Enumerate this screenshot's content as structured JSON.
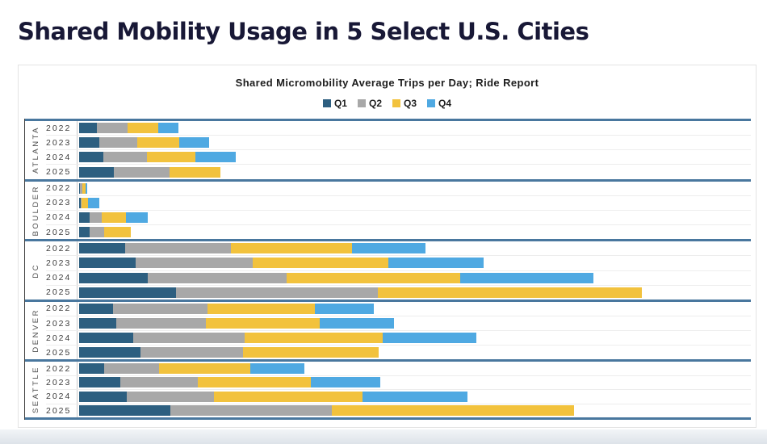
{
  "page": {
    "title": "Shared Mobility Usage in 5 Select U.S. Cities"
  },
  "chart": {
    "title": "Shared Micromobility Average Trips per Day; Ride Report"
  },
  "chart_data": {
    "type": "bar",
    "orientation": "horizontal",
    "stacked": true,
    "title": "Shared Micromobility Average Trips per Day; Ride Report",
    "legend_position": "top-center",
    "axis_note": "no numeric value axis is shown; values are approximate relative units read from bar lengths",
    "value_axis": {
      "min": 0,
      "max": 836,
      "ticks_visible": false
    },
    "quarters": [
      "q1",
      "q2",
      "q3",
      "q4"
    ],
    "colors": {
      "q1": "#2d5f80",
      "q2": "#a8a8a8",
      "q3": "#f2c23d",
      "q4": "#4fa9e2"
    },
    "legend": [
      {
        "key": "q1",
        "label": "Q1"
      },
      {
        "key": "q2",
        "label": "Q2"
      },
      {
        "key": "q3",
        "label": "Q3"
      },
      {
        "key": "q4",
        "label": "Q4"
      }
    ],
    "groups": [
      {
        "city": "ATLANTA",
        "rows": [
          {
            "year": "2022",
            "q1": 22,
            "q2": 38,
            "q3": 38,
            "q4": 25
          },
          {
            "year": "2023",
            "q1": 25,
            "q2": 47,
            "q3": 52,
            "q4": 37
          },
          {
            "year": "2024",
            "q1": 30,
            "q2": 54,
            "q3": 60,
            "q4": 50
          },
          {
            "year": "2025",
            "q1": 43,
            "q2": 69,
            "q3": 63,
            "q4": 0
          }
        ]
      },
      {
        "city": "BOULDER",
        "rows": [
          {
            "year": "2022",
            "q1": 1,
            "q2": 3,
            "q3": 4,
            "q4": 2
          },
          {
            "year": "2023",
            "q1": 2,
            "q2": 1,
            "q3": 8,
            "q4": 14
          },
          {
            "year": "2024",
            "q1": 13,
            "q2": 15,
            "q3": 30,
            "q4": 27
          },
          {
            "year": "2025",
            "q1": 13,
            "q2": 18,
            "q3": 33,
            "q4": 0
          }
        ]
      },
      {
        "city": "DC",
        "rows": [
          {
            "year": "2022",
            "q1": 57,
            "q2": 131,
            "q3": 150,
            "q4": 91
          },
          {
            "year": "2023",
            "q1": 70,
            "q2": 145,
            "q3": 168,
            "q4": 118
          },
          {
            "year": "2024",
            "q1": 85,
            "q2": 172,
            "q3": 215,
            "q4": 165
          },
          {
            "year": "2025",
            "q1": 120,
            "q2": 250,
            "q3": 327,
            "q4": 0
          }
        ]
      },
      {
        "city": "DENVER",
        "rows": [
          {
            "year": "2022",
            "q1": 42,
            "q2": 117,
            "q3": 133,
            "q4": 73
          },
          {
            "year": "2023",
            "q1": 46,
            "q2": 111,
            "q3": 141,
            "q4": 92
          },
          {
            "year": "2024",
            "q1": 67,
            "q2": 138,
            "q3": 171,
            "q4": 116
          },
          {
            "year": "2025",
            "q1": 76,
            "q2": 127,
            "q3": 168,
            "q4": 0
          }
        ]
      },
      {
        "city": "SEATTLE",
        "rows": [
          {
            "year": "2022",
            "q1": 31,
            "q2": 68,
            "q3": 113,
            "q4": 67
          },
          {
            "year": "2023",
            "q1": 51,
            "q2": 96,
            "q3": 140,
            "q4": 86
          },
          {
            "year": "2024",
            "q1": 59,
            "q2": 108,
            "q3": 184,
            "q4": 130
          },
          {
            "year": "2025",
            "q1": 113,
            "q2": 200,
            "q3": 300,
            "q4": 0
          }
        ]
      }
    ]
  }
}
